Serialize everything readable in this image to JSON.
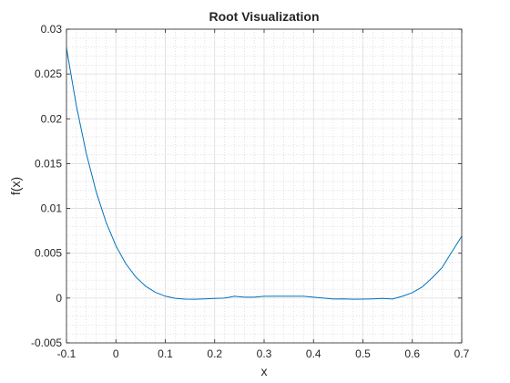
{
  "chart_data": {
    "type": "line",
    "title": "Root Visualization",
    "xlabel": "x",
    "ylabel": "f(x)",
    "xlim": [
      -0.1,
      0.7
    ],
    "ylim": [
      -0.005,
      0.03
    ],
    "x_ticks": [
      -0.1,
      0,
      0.1,
      0.2,
      0.3,
      0.4,
      0.5,
      0.6,
      0.7
    ],
    "x_tick_labels": [
      "-0.1",
      "0",
      "0.1",
      "0.2",
      "0.3",
      "0.4",
      "0.5",
      "0.6",
      "0.7"
    ],
    "y_ticks": [
      -0.005,
      0,
      0.005,
      0.01,
      0.015,
      0.02,
      0.025,
      0.03
    ],
    "y_tick_labels": [
      "-0.005",
      "0",
      "0.005",
      "0.01",
      "0.015",
      "0.02",
      "0.025",
      "0.03"
    ],
    "grid": true,
    "minor_grid": true,
    "series": [
      {
        "color": "#0072bd",
        "x": [
          -0.1,
          -0.08,
          -0.06,
          -0.04,
          -0.02,
          0,
          0.02,
          0.04,
          0.06,
          0.08,
          0.1,
          0.12,
          0.14,
          0.16,
          0.18,
          0.2,
          0.22,
          0.24,
          0.26,
          0.28,
          0.3,
          0.32,
          0.34,
          0.36,
          0.38,
          0.4,
          0.42,
          0.44,
          0.46,
          0.48,
          0.5,
          0.52,
          0.54,
          0.56,
          0.58,
          0.6,
          0.62,
          0.64,
          0.66,
          0.68,
          0.7
        ],
        "y": [
          0.0279,
          0.02145,
          0.01616,
          0.01188,
          0.00848,
          0.00584,
          0.00384,
          0.00237,
          0.00133,
          0.00064,
          0.00021,
          -3e-05,
          -0.00012,
          -0.00013,
          -9e-05,
          -4e-05,
          0.0,
          0.0002,
          0.0001,
          0.0001,
          0.0002,
          0.0002,
          0.0002,
          0.0002,
          0.0002,
          0.0001,
          0.0,
          -0.0001,
          -9e-05,
          -0.00013,
          -0.00012,
          -9e-05,
          -4e-05,
          -0.0001,
          0.0002,
          0.0006,
          0.00124,
          0.00225,
          0.00338,
          0.00515,
          0.0069
        ]
      }
    ]
  }
}
